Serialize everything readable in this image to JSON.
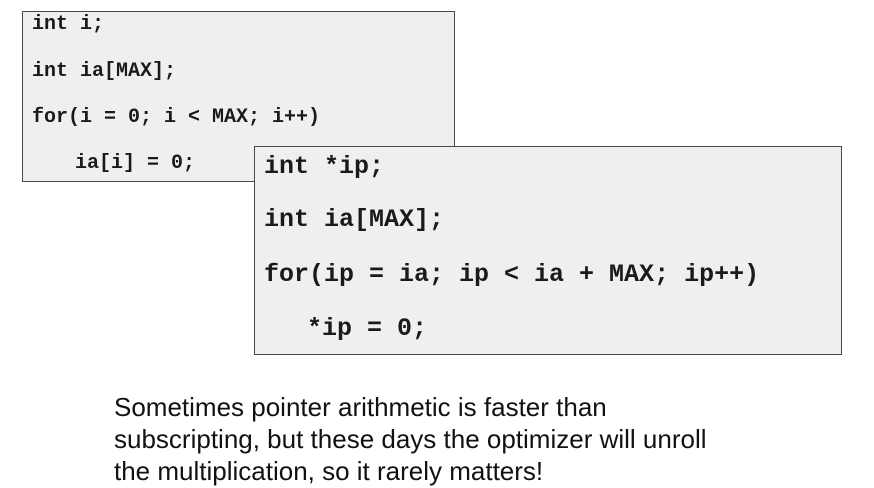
{
  "code_snippet_1": {
    "lines": [
      "int i;",
      "int ia[MAX];",
      "for(i = 0; i < MAX; i++)",
      "ia[i] = 0;"
    ]
  },
  "code_snippet_2": {
    "lines": [
      "int *ip;",
      "int ia[MAX];",
      "for(ip = ia; ip < ia + MAX; ip++)",
      "*ip = 0;"
    ]
  },
  "caption": {
    "lines": [
      "Sometimes pointer arithmetic is faster than",
      "subscripting, but these days the optimizer will unroll",
      "the multiplication, so it rarely matters!"
    ]
  }
}
